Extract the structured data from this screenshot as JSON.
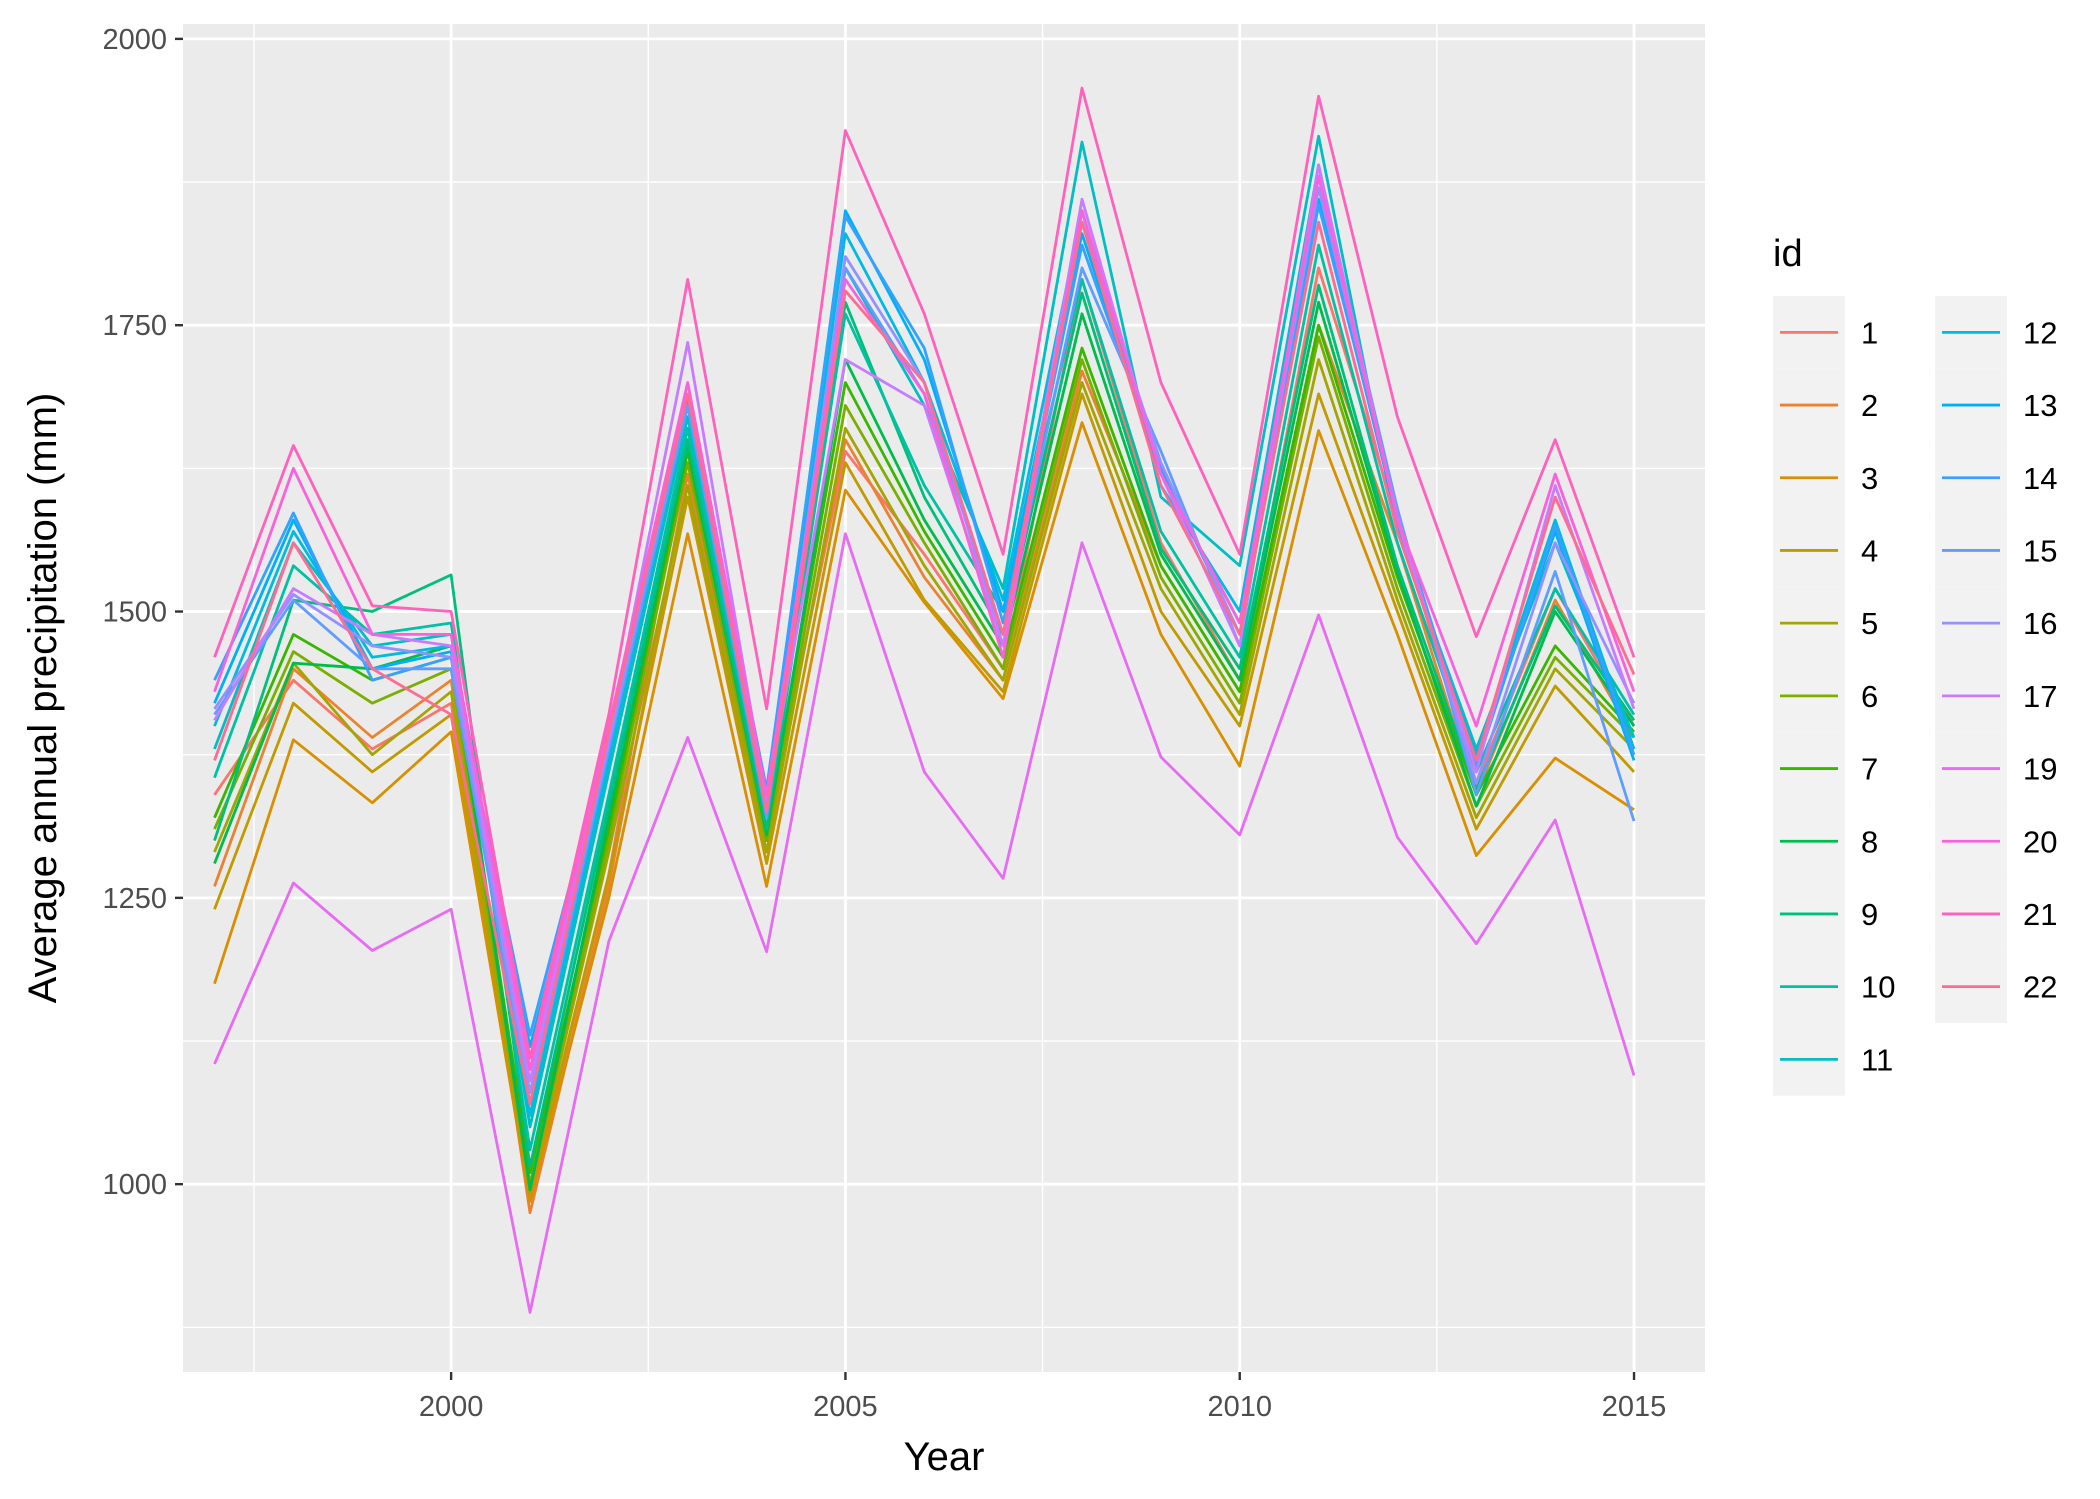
{
  "chart_data": {
    "type": "line",
    "title": "",
    "xlabel": "Year",
    "ylabel": "Average annual precipitation (mm)",
    "xlim": [
      1996.6,
      2015.9
    ],
    "ylim": [
      836,
      2013
    ],
    "x_ticks": [
      2000,
      2005,
      2010,
      2015
    ],
    "y_ticks": [
      1000,
      1250,
      1500,
      1750,
      2000
    ],
    "x_tick_labels": [
      "2000",
      "2005",
      "2010",
      "2015"
    ],
    "y_tick_labels": [
      "1000",
      "1250",
      "1500",
      "1750",
      "2000"
    ],
    "grid": true,
    "legend_title": "id",
    "legend_position": "right",
    "x": [
      1997,
      1998,
      1999,
      2000,
      2001,
      2002,
      2003,
      2004,
      2005,
      2006,
      2007,
      2008,
      2009,
      2010,
      2011,
      2012,
      2013,
      2014,
      2015
    ],
    "series": [
      {
        "name": "1",
        "color": "#F8766D",
        "values": [
          1340,
          1440,
          1380,
          1420,
          985,
          1270,
          1650,
          1310,
          1640,
          1550,
          1450,
          1790,
          1560,
          1440,
          1800,
          1580,
          1350,
          1520,
          1400
        ]
      },
      {
        "name": "2",
        "color": "#EA8331",
        "values": [
          1260,
          1450,
          1390,
          1440,
          975,
          1260,
          1620,
          1300,
          1650,
          1530,
          1440,
          1710,
          1540,
          1430,
          1750,
          1560,
          1340,
          1510,
          1390
        ]
      },
      {
        "name": "3",
        "color": "#D89000",
        "values": [
          1175,
          1388,
          1333,
          1395,
          985,
          1250,
          1568,
          1260,
          1606,
          1508,
          1424,
          1665,
          1480,
          1365,
          1658,
          1480,
          1287,
          1372,
          1327
        ]
      },
      {
        "name": "4",
        "color": "#C09B00",
        "values": [
          1240,
          1420,
          1360,
          1410,
          990,
          1270,
          1600,
          1280,
          1630,
          1510,
          1430,
          1690,
          1500,
          1400,
          1690,
          1500,
          1310,
          1435,
          1360
        ]
      },
      {
        "name": "5",
        "color": "#A3A500",
        "values": [
          1290,
          1455,
          1375,
          1430,
          995,
          1290,
          1610,
          1290,
          1660,
          1540,
          1440,
          1700,
          1520,
          1410,
          1720,
          1510,
          1320,
          1450,
          1380
        ]
      },
      {
        "name": "6",
        "color": "#7CAE00",
        "values": [
          1310,
          1465,
          1420,
          1450,
          1000,
          1300,
          1630,
          1300,
          1680,
          1560,
          1450,
          1720,
          1530,
          1420,
          1740,
          1520,
          1330,
          1460,
          1390
        ]
      },
      {
        "name": "7",
        "color": "#39B600",
        "values": [
          1320,
          1480,
          1440,
          1460,
          1010,
          1310,
          1640,
          1310,
          1700,
          1570,
          1460,
          1730,
          1540,
          1430,
          1750,
          1530,
          1340,
          1470,
          1395
        ]
      },
      {
        "name": "8",
        "color": "#00BB4E",
        "values": [
          1280,
          1455,
          1450,
          1470,
          995,
          1320,
          1645,
          1305,
          1720,
          1580,
          1470,
          1760,
          1550,
          1440,
          1770,
          1535,
          1330,
          1500,
          1400
        ]
      },
      {
        "name": "9",
        "color": "#00BF7D",
        "values": [
          1300,
          1510,
          1500,
          1532,
          1015,
          1330,
          1650,
          1310,
          1770,
          1600,
          1480,
          1778,
          1555,
          1450,
          1785,
          1540,
          1345,
          1505,
          1405
        ]
      },
      {
        "name": "10",
        "color": "#00C1A3",
        "values": [
          1355,
          1540,
          1480,
          1490,
          1030,
          1340,
          1660,
          1320,
          1760,
          1610,
          1500,
          1790,
          1570,
          1460,
          1820,
          1560,
          1360,
          1520,
          1410
        ]
      },
      {
        "name": "11",
        "color": "#00BFC4",
        "values": [
          1380,
          1560,
          1470,
          1480,
          1050,
          1360,
          1670,
          1330,
          1800,
          1680,
          1520,
          1910,
          1600,
          1540,
          1915,
          1570,
          1380,
          1560,
          1390
        ]
      },
      {
        "name": "12",
        "color": "#00BAE0",
        "values": [
          1400,
          1570,
          1460,
          1470,
          1060,
          1370,
          1680,
          1335,
          1830,
          1700,
          1510,
          1850,
          1610,
          1500,
          1890,
          1575,
          1375,
          1580,
          1380
        ]
      },
      {
        "name": "13",
        "color": "#00B0F6",
        "values": [
          1420,
          1580,
          1450,
          1465,
          1120,
          1380,
          1685,
          1340,
          1850,
          1720,
          1500,
          1830,
          1620,
          1490,
          1860,
          1580,
          1370,
          1570,
          1370
        ]
      },
      {
        "name": "14",
        "color": "#35A2FF",
        "values": [
          1440,
          1586,
          1440,
          1460,
          1130,
          1390,
          1690,
          1345,
          1845,
          1730,
          1490,
          1820,
          1625,
          1480,
          1855,
          1585,
          1365,
          1575,
          1375
        ]
      },
      {
        "name": "15",
        "color": "#619CFF",
        "values": [
          1410,
          1510,
          1450,
          1450,
          1070,
          1380,
          1680,
          1320,
          1800,
          1690,
          1480,
          1800,
          1640,
          1470,
          1880,
          1590,
          1340,
          1535,
          1317
        ]
      },
      {
        "name": "16",
        "color": "#9590FF",
        "values": [
          1415,
          1515,
          1470,
          1460,
          1080,
          1385,
          1690,
          1330,
          1810,
          1700,
          1470,
          1840,
          1630,
          1480,
          1870,
          1585,
          1350,
          1560,
          1420
        ]
      },
      {
        "name": "17",
        "color": "#C77CFF",
        "values": [
          1405,
          1520,
          1480,
          1470,
          1090,
          1390,
          1735,
          1335,
          1720,
          1680,
          1470,
          1860,
          1620,
          1470,
          1890,
          1580,
          1360,
          1610,
          1415
        ]
      },
      {
        "name": "19",
        "color": "#E76BF3",
        "values": [
          1105,
          1263,
          1204,
          1240,
          888,
          1212,
          1390,
          1203,
          1568,
          1360,
          1267,
          1560,
          1373,
          1305,
          1497,
          1303,
          1210,
          1318,
          1095
        ]
      },
      {
        "name": "20",
        "color": "#FA62DB",
        "values": [
          1430,
          1625,
          1480,
          1480,
          1100,
          1400,
          1700,
          1340,
          1790,
          1690,
          1460,
          1850,
          1620,
          1490,
          1880,
          1580,
          1400,
          1620,
          1430
        ]
      },
      {
        "name": "21",
        "color": "#FF62BC",
        "values": [
          1460,
          1645,
          1505,
          1500,
          1110,
          1410,
          1790,
          1415,
          1920,
          1760,
          1550,
          1957,
          1700,
          1550,
          1950,
          1670,
          1478,
          1650,
          1460
        ]
      },
      {
        "name": "22",
        "color": "#FF6C91",
        "values": [
          1370,
          1560,
          1450,
          1410,
          1070,
          1395,
          1690,
          1325,
          1780,
          1700,
          1480,
          1840,
          1610,
          1480,
          1840,
          1570,
          1370,
          1600,
          1445
        ]
      }
    ]
  }
}
